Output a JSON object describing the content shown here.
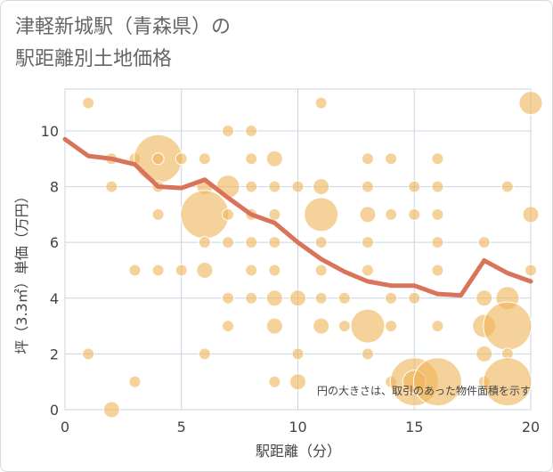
{
  "title_line1": "津軽新城駅（青森県）の",
  "title_line2": "駅距離別土地価格",
  "chart_data": {
    "type": "scatter",
    "title": "津軽新城駅（青森県）の駅距離別土地価格",
    "xlabel": "駅距離（分）",
    "ylabel": "坪（3.3㎡）単価（万円）",
    "xlim": [
      0,
      20
    ],
    "ylim": [
      0,
      11.5
    ],
    "xticks": [
      0,
      5,
      10,
      15,
      20
    ],
    "yticks": [
      0,
      2,
      4,
      6,
      8,
      10
    ],
    "grid": true,
    "note": "円の大きさは、取引のあった物件面積を示す",
    "colors": {
      "bubble": "#F0B458",
      "line": "#D9735A",
      "grid": "#C8D4E0"
    },
    "line_series": {
      "x": [
        0,
        1,
        2,
        3,
        4,
        5,
        6,
        7,
        8,
        9,
        10,
        11,
        12,
        13,
        14,
        15,
        16,
        17,
        18,
        19,
        20
      ],
      "y": [
        9.7,
        9.1,
        9.0,
        8.8,
        8.0,
        7.95,
        8.25,
        7.6,
        7.0,
        6.7,
        6.0,
        5.4,
        4.95,
        4.6,
        4.45,
        4.45,
        4.15,
        4.1,
        5.35,
        4.9,
        4.6
      ]
    },
    "bubbles": [
      {
        "x": 1,
        "y": 11,
        "s": 1
      },
      {
        "x": 11,
        "y": 11,
        "s": 1
      },
      {
        "x": 20,
        "y": 11,
        "s": 3
      },
      {
        "x": 7,
        "y": 10,
        "s": 1
      },
      {
        "x": 8,
        "y": 10,
        "s": 1
      },
      {
        "x": 2,
        "y": 9,
        "s": 1
      },
      {
        "x": 3,
        "y": 9,
        "s": 1
      },
      {
        "x": 4,
        "y": 9,
        "s": 5
      },
      {
        "x": 4,
        "y": 9,
        "s": 1
      },
      {
        "x": 5,
        "y": 9,
        "s": 1
      },
      {
        "x": 6,
        "y": 9,
        "s": 1
      },
      {
        "x": 8,
        "y": 9,
        "s": 1
      },
      {
        "x": 9,
        "y": 9,
        "s": 2
      },
      {
        "x": 13,
        "y": 9,
        "s": 1
      },
      {
        "x": 14,
        "y": 9,
        "s": 1
      },
      {
        "x": 16,
        "y": 9,
        "s": 1
      },
      {
        "x": 2,
        "y": 8,
        "s": 1
      },
      {
        "x": 4,
        "y": 8,
        "s": 1
      },
      {
        "x": 6,
        "y": 8,
        "s": 2
      },
      {
        "x": 7,
        "y": 8,
        "s": 3
      },
      {
        "x": 8,
        "y": 8,
        "s": 1
      },
      {
        "x": 9,
        "y": 8,
        "s": 1
      },
      {
        "x": 10,
        "y": 8,
        "s": 1
      },
      {
        "x": 11,
        "y": 8,
        "s": 2
      },
      {
        "x": 13,
        "y": 8,
        "s": 1
      },
      {
        "x": 15,
        "y": 8,
        "s": 1
      },
      {
        "x": 16,
        "y": 8,
        "s": 1
      },
      {
        "x": 19,
        "y": 8,
        "s": 1
      },
      {
        "x": 4,
        "y": 7,
        "s": 1
      },
      {
        "x": 6,
        "y": 7,
        "s": 5
      },
      {
        "x": 7,
        "y": 7,
        "s": 1
      },
      {
        "x": 8,
        "y": 7,
        "s": 1
      },
      {
        "x": 9,
        "y": 7,
        "s": 1
      },
      {
        "x": 11,
        "y": 7,
        "s": 4
      },
      {
        "x": 13,
        "y": 7,
        "s": 2
      },
      {
        "x": 14,
        "y": 7,
        "s": 1
      },
      {
        "x": 15,
        "y": 7,
        "s": 1
      },
      {
        "x": 16,
        "y": 7,
        "s": 1
      },
      {
        "x": 20,
        "y": 7,
        "s": 2
      },
      {
        "x": 6,
        "y": 6,
        "s": 1
      },
      {
        "x": 7,
        "y": 6,
        "s": 1
      },
      {
        "x": 8,
        "y": 6,
        "s": 1
      },
      {
        "x": 9,
        "y": 6,
        "s": 1
      },
      {
        "x": 11,
        "y": 6,
        "s": 1
      },
      {
        "x": 13,
        "y": 6,
        "s": 1
      },
      {
        "x": 16,
        "y": 6,
        "s": 1
      },
      {
        "x": 18,
        "y": 6,
        "s": 1
      },
      {
        "x": 3,
        "y": 5,
        "s": 1
      },
      {
        "x": 4,
        "y": 5,
        "s": 1
      },
      {
        "x": 5,
        "y": 5,
        "s": 1
      },
      {
        "x": 6,
        "y": 5,
        "s": 2
      },
      {
        "x": 8,
        "y": 5,
        "s": 1
      },
      {
        "x": 9,
        "y": 5,
        "s": 1
      },
      {
        "x": 11,
        "y": 5,
        "s": 1
      },
      {
        "x": 13,
        "y": 5,
        "s": 1
      },
      {
        "x": 16,
        "y": 5,
        "s": 1
      },
      {
        "x": 20,
        "y": 5,
        "s": 1
      },
      {
        "x": 7,
        "y": 4,
        "s": 1
      },
      {
        "x": 8,
        "y": 4,
        "s": 1
      },
      {
        "x": 9,
        "y": 4,
        "s": 2
      },
      {
        "x": 10,
        "y": 4,
        "s": 2
      },
      {
        "x": 11,
        "y": 4,
        "s": 1
      },
      {
        "x": 12,
        "y": 4,
        "s": 1
      },
      {
        "x": 14,
        "y": 4,
        "s": 1
      },
      {
        "x": 15,
        "y": 4,
        "s": 1
      },
      {
        "x": 18,
        "y": 4,
        "s": 2
      },
      {
        "x": 19,
        "y": 4,
        "s": 3
      },
      {
        "x": 7,
        "y": 3,
        "s": 1
      },
      {
        "x": 9,
        "y": 3,
        "s": 2
      },
      {
        "x": 11,
        "y": 3,
        "s": 2
      },
      {
        "x": 12,
        "y": 3,
        "s": 1
      },
      {
        "x": 13,
        "y": 3,
        "s": 4
      },
      {
        "x": 14,
        "y": 3,
        "s": 1
      },
      {
        "x": 16,
        "y": 3,
        "s": 1
      },
      {
        "x": 18,
        "y": 3,
        "s": 3
      },
      {
        "x": 19,
        "y": 3,
        "s": 5
      },
      {
        "x": 1,
        "y": 2,
        "s": 1
      },
      {
        "x": 6,
        "y": 2,
        "s": 1
      },
      {
        "x": 10,
        "y": 2,
        "s": 1
      },
      {
        "x": 13,
        "y": 2,
        "s": 1
      },
      {
        "x": 18,
        "y": 2,
        "s": 2
      },
      {
        "x": 19,
        "y": 2,
        "s": 1
      },
      {
        "x": 3,
        "y": 1,
        "s": 1
      },
      {
        "x": 9,
        "y": 1,
        "s": 1
      },
      {
        "x": 10,
        "y": 1,
        "s": 2
      },
      {
        "x": 14,
        "y": 1,
        "s": 1
      },
      {
        "x": 15,
        "y": 1,
        "s": 5
      },
      {
        "x": 15,
        "y": 1,
        "s": 3
      },
      {
        "x": 16,
        "y": 1,
        "s": 5
      },
      {
        "x": 18,
        "y": 1,
        "s": 1
      },
      {
        "x": 19,
        "y": 1,
        "s": 5
      },
      {
        "x": 2,
        "y": 0,
        "s": 2
      }
    ]
  }
}
